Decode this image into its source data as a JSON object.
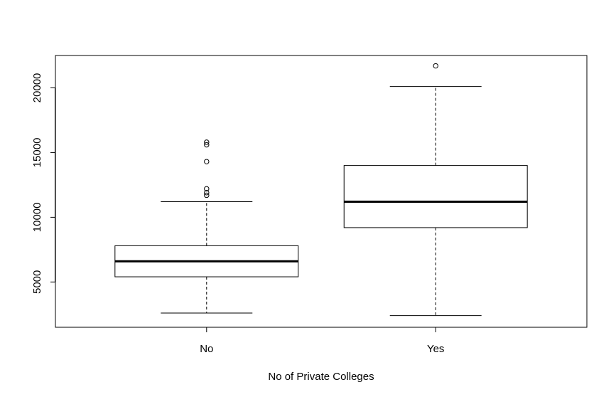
{
  "chart_data": {
    "type": "boxplot",
    "title": "",
    "xlabel": "No of Private Colleges",
    "ylabel": "",
    "categories": [
      "No",
      "Yes"
    ],
    "ylim": [
      1500,
      22500
    ],
    "yticks": [
      5000,
      10000,
      15000,
      20000
    ],
    "boxes": [
      {
        "name": "No",
        "whisker_low": 2600,
        "q1": 5400,
        "median": 6600,
        "q3": 7800,
        "whisker_high": 11200,
        "outliers": [
          11700,
          11900,
          12200,
          14300,
          15600,
          15800
        ]
      },
      {
        "name": "Yes",
        "whisker_low": 2400,
        "q1": 9200,
        "median": 11200,
        "q3": 14000,
        "whisker_high": 20100,
        "outliers": [
          21700
        ]
      }
    ],
    "grid": false,
    "legend": "none"
  }
}
